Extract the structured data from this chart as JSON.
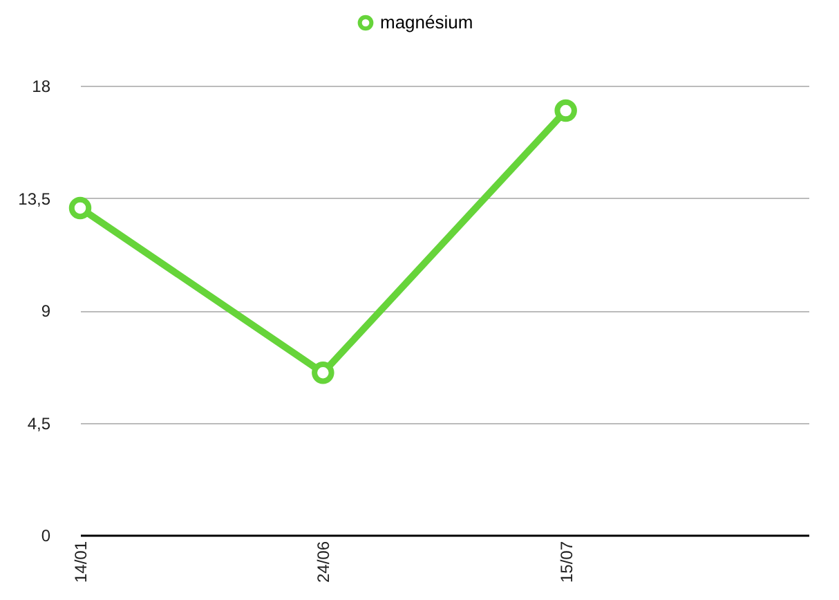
{
  "chart_data": {
    "type": "line",
    "categories": [
      "14/01",
      "24/06",
      "15/07",
      null
    ],
    "series": [
      {
        "name": "magnésium",
        "color": "#66d43a",
        "values": [
          13.1,
          6.5,
          17,
          null
        ]
      }
    ],
    "ylim": [
      0,
      18
    ],
    "yticks": [
      0,
      {
        "value": 4.5,
        "label": "4,5"
      },
      9,
      {
        "value": 13.5,
        "label": "13,5"
      },
      18
    ],
    "grid": "y",
    "legend": "top",
    "marker": "circle",
    "line_style": "solid"
  }
}
